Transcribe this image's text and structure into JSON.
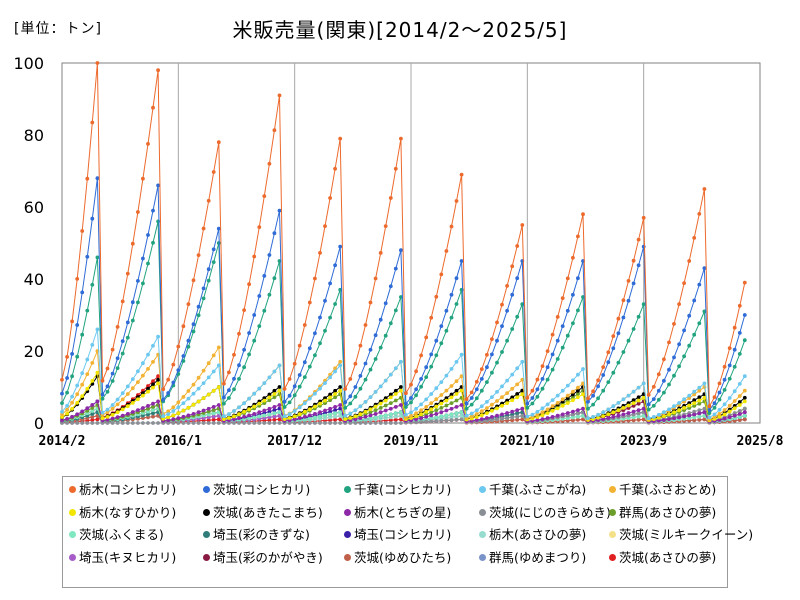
{
  "unit_label": "[単位：トン]",
  "chart_data": {
    "type": "line",
    "title": "米販売量(関東)[2014/2〜2025/5]",
    "xlabel": "",
    "ylabel": "",
    "ylim": [
      0,
      100
    ],
    "yticks": [
      0,
      20,
      40,
      60,
      80,
      100
    ],
    "x_start": "2014/2",
    "x_end": "2025/8",
    "xticks": [
      "2014/2",
      "2016/1",
      "2017/12",
      "2019/11",
      "2021/10",
      "2023/9",
      "2025/8"
    ],
    "grid": "vertical",
    "legend_position": "bottom",
    "seasons": [
      {
        "start": "2014/2",
        "end": "2014/9"
      },
      {
        "start": "2014/10",
        "end": "2015/9"
      },
      {
        "start": "2015/10",
        "end": "2016/9"
      },
      {
        "start": "2016/10",
        "end": "2017/9"
      },
      {
        "start": "2017/10",
        "end": "2018/9"
      },
      {
        "start": "2018/10",
        "end": "2019/9"
      },
      {
        "start": "2019/10",
        "end": "2020/9"
      },
      {
        "start": "2020/10",
        "end": "2021/9"
      },
      {
        "start": "2021/10",
        "end": "2022/9"
      },
      {
        "start": "2022/10",
        "end": "2023/9"
      },
      {
        "start": "2023/10",
        "end": "2024/9"
      },
      {
        "start": "2024/10",
        "end": "2025/5"
      }
    ],
    "series": [
      {
        "name": "栃木(コシヒカリ)",
        "color": "#ED6A2D",
        "season_peaks": [
          100,
          98,
          78,
          91,
          79,
          79,
          69,
          55,
          58,
          57,
          65,
          39
        ]
      },
      {
        "name": "茨城(コシヒカリ)",
        "color": "#2E6BD6",
        "season_peaks": [
          68,
          66,
          54,
          59,
          49,
          48,
          45,
          45,
          45,
          49,
          43,
          30
        ]
      },
      {
        "name": "千葉(コシヒカリ)",
        "color": "#21A37F",
        "season_peaks": [
          46,
          56,
          50,
          45,
          37,
          35,
          37,
          33,
          35,
          33,
          31,
          23
        ]
      },
      {
        "name": "千葉(ふさこがね)",
        "color": "#6CC8EF",
        "season_peaks": [
          26,
          24,
          16,
          16,
          16,
          17,
          19,
          17,
          15,
          11,
          11,
          13
        ]
      },
      {
        "name": "千葉(ふさおとめ)",
        "color": "#F2B233",
        "season_peaks": [
          20,
          19,
          21,
          16,
          17,
          17,
          13,
          12,
          11,
          11,
          10,
          9
        ]
      },
      {
        "name": "栃木(なすひかり)",
        "color": "#F2E600",
        "season_peaks": [
          14,
          11,
          10,
          9,
          9,
          9,
          9,
          8,
          8,
          7,
          7,
          6
        ]
      },
      {
        "name": "茨城(あきたこまち)",
        "color": "#000000",
        "season_peaks": [
          13,
          12,
          10,
          10,
          10,
          10,
          10,
          9,
          10,
          8,
          8,
          7
        ]
      },
      {
        "name": "栃木(とちぎの星)",
        "color": "#8E2AA8",
        "season_peaks": [
          6,
          6,
          5,
          5,
          5,
          5,
          5,
          4,
          4,
          4,
          3,
          3
        ]
      },
      {
        "name": "茨城(にじのきらめき)",
        "color": "#8A8F96",
        "season_peaks": [
          0,
          0,
          0,
          0,
          0,
          0,
          1,
          2,
          3,
          3,
          4,
          4
        ]
      },
      {
        "name": "群馬(あさひの夢)",
        "color": "#6B9E2A",
        "season_peaks": [
          5,
          5,
          4,
          8,
          8,
          7,
          7,
          9,
          9,
          7,
          6,
          4
        ]
      },
      {
        "name": "茨城(ふくまる)",
        "color": "#7FE8C0",
        "season_peaks": [
          4,
          4,
          3,
          3,
          3,
          3,
          3,
          2,
          2,
          2,
          2,
          2
        ]
      },
      {
        "name": "埼玉(彩のきずな)",
        "color": "#2E7D78",
        "season_peaks": [
          3,
          3,
          3,
          3,
          3,
          3,
          3,
          3,
          3,
          3,
          3,
          2
        ]
      },
      {
        "name": "埼玉(コシヒカリ)",
        "color": "#3A1FA8",
        "season_peaks": [
          6,
          5,
          4,
          4,
          4,
          3,
          3,
          3,
          3,
          3,
          3,
          2
        ]
      },
      {
        "name": "栃木(あさひの夢)",
        "color": "#96DDD0",
        "season_peaks": [
          3,
          3,
          3,
          3,
          2,
          2,
          2,
          2,
          2,
          2,
          2,
          2
        ]
      },
      {
        "name": "茨城(ミルキークイーン)",
        "color": "#F5E08A",
        "season_peaks": [
          3,
          3,
          3,
          3,
          2,
          2,
          2,
          2,
          2,
          2,
          2,
          2
        ]
      },
      {
        "name": "埼玉(キヌヒカリ)",
        "color": "#A85CC9",
        "season_peaks": [
          3,
          3,
          2,
          2,
          2,
          2,
          2,
          2,
          2,
          2,
          2,
          2
        ]
      },
      {
        "name": "埼玉(彩のかがやき)",
        "color": "#8A1A44",
        "season_peaks": [
          4,
          4,
          3,
          3,
          3,
          3,
          3,
          3,
          3,
          6,
          3,
          3
        ]
      },
      {
        "name": "茨城(ゆめひたち)",
        "color": "#C0604A",
        "season_peaks": [
          2,
          2,
          2,
          2,
          2,
          2,
          2,
          1,
          1,
          1,
          1,
          1
        ]
      },
      {
        "name": "群馬(ゆめまつり)",
        "color": "#7A93C9",
        "season_peaks": [
          2,
          2,
          2,
          2,
          2,
          2,
          2,
          2,
          2,
          2,
          1,
          1
        ]
      },
      {
        "name": "茨城(あさひの夢)",
        "color": "#E02020",
        "season_peaks": [
          1,
          13,
          1,
          1,
          1,
          1,
          1,
          1,
          1,
          1,
          1,
          1
        ]
      }
    ]
  }
}
